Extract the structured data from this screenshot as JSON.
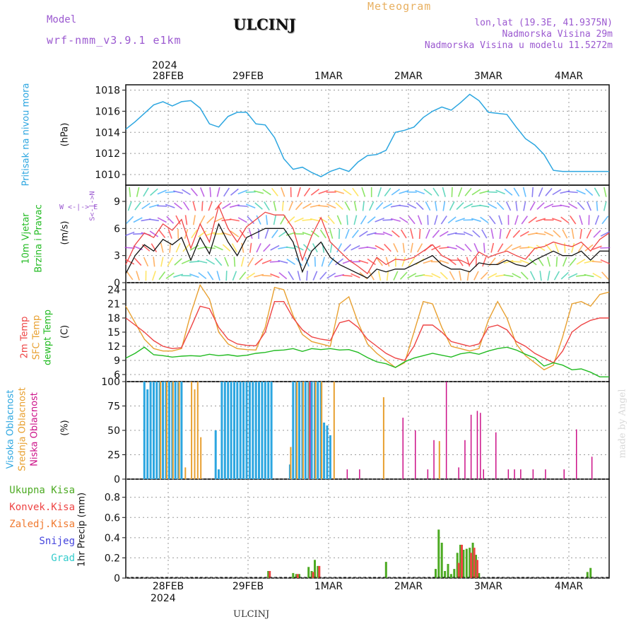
{
  "header": {
    "model_label": "Model",
    "model_name": "wrf-nmm_v3.9.1 e1km",
    "station": "ULCINJ",
    "meteogram_label": "Meteogram",
    "lonlat": "lon,lat (19.3E, 41.9375N)",
    "elevation": "Nadmorska Visina 29m",
    "model_elevation": "Nadmorska Visina u modelu 11.5272m",
    "footer_station": "ULCINJ",
    "watermark": "made by Angel"
  },
  "colors": {
    "pressure": "#2ca6e0",
    "wind_label": "#22bb22",
    "temp2m": "#ee4444",
    "sfc_temp": "#e8a030",
    "dewpoint": "#22bb22",
    "high_cloud": "#2ca6e0",
    "mid_cloud": "#e8a030",
    "low_cloud": "#cc1188",
    "total_precip": "#4caa22",
    "conv_precip": "#ee4444",
    "grid_precip": "#f07a30",
    "snow": "#4444dd",
    "graupel": "#33cccc",
    "header_purple": "#9b59d0",
    "meteogram_orange": "#e8b060"
  },
  "x_axis": {
    "year_top": "2024",
    "year_bottom": "2024",
    "date_labels": [
      "28FEB",
      "29FEB",
      "1MAR",
      "2MAR",
      "3MAR",
      "4MAR"
    ]
  },
  "panels": {
    "pressure": {
      "ylabel": "(hPa)",
      "side_label": "Pritisak na nivou mora"
    },
    "wind": {
      "ylabel": "(m/s)",
      "side_label_1": "10m Vjetar",
      "side_label_2": "Brzina i Pravac",
      "compass_n": "N",
      "compass_s": "S",
      "compass_w": "W",
      "compass_e": "E"
    },
    "temp": {
      "ylabel": "(C)",
      "side_label_1": "2m Temp",
      "side_label_2": "SFC Temp",
      "side_label_3": "dewpt Temp"
    },
    "cloud": {
      "ylabel": "(%)",
      "side_label_1": "Visoka Oblacnost",
      "side_label_2": "Srednja Oblacnost",
      "side_label_3": "Niska Oblacnost"
    },
    "precip": {
      "ylabel": "1hr Precip (mm)",
      "legend": [
        "Ukupna Kisa",
        "Konvek.Kisa",
        "Zaledj.Kisa",
        "Snijeg",
        "Grad"
      ]
    }
  },
  "chart_data": [
    {
      "type": "line",
      "name": "pressure",
      "x_unit": "hours since 28FEB 00",
      "ylim": [
        1009,
        1018.5
      ],
      "yticks": [
        1010,
        1012,
        1014,
        1016,
        1018
      ],
      "grid": true,
      "series": [
        {
          "name": "",
          "x": [
            -15,
            -12,
            -9,
            -6,
            -3,
            0,
            3,
            6,
            9,
            12,
            15,
            18,
            21,
            24,
            27,
            30,
            33,
            36,
            39,
            42,
            45,
            48,
            51,
            54,
            57,
            60,
            63,
            66,
            69,
            72,
            75,
            78,
            81,
            84,
            87,
            90,
            93,
            96,
            99,
            102,
            105,
            108,
            111,
            114,
            117,
            120,
            123,
            126,
            129,
            132,
            135,
            138,
            141
          ],
          "y": [
            1014.3,
            1015.0,
            1015.8,
            1016.6,
            1016.9,
            1016.5,
            1016.9,
            1017.0,
            1016.3,
            1014.8,
            1014.5,
            1015.5,
            1015.9,
            1015.9,
            1014.8,
            1014.7,
            1013.5,
            1011.5,
            1010.5,
            1010.7,
            1010.2,
            1009.8,
            1010.3,
            1010.6,
            1010.3,
            1011.2,
            1011.8,
            1011.9,
            1012.3,
            1014.0,
            1014.2,
            1014.5,
            1015.4,
            1016.0,
            1016.4,
            1016.1,
            1016.8,
            1017.6,
            1017.0,
            1015.9,
            1015.8,
            1015.7,
            1014.5,
            1013.4,
            1012.8,
            1011.9,
            1010.4,
            1010.3,
            1010.3,
            1010.3,
            1010.3,
            1010.3,
            1010.3
          ]
        }
      ]
    },
    {
      "type": "line",
      "name": "wind",
      "x_unit": "hours since 28FEB 00",
      "ylim": [
        0,
        10.8
      ],
      "yticks": [
        0,
        3,
        6,
        9
      ],
      "grid": true,
      "series": [
        {
          "name": "",
          "x": [
            -15,
            -12,
            -9,
            -6,
            -3,
            0,
            3,
            6,
            9,
            12,
            15,
            18,
            21,
            24,
            27,
            30,
            33,
            36,
            39,
            42,
            45,
            48,
            51,
            54,
            57,
            60,
            63,
            66,
            69,
            72,
            75,
            78,
            81,
            84,
            87,
            90,
            93,
            96,
            99,
            102,
            105,
            108,
            111,
            114,
            117,
            120,
            123,
            126,
            129,
            132,
            135,
            138,
            141
          ],
          "y": [
            2.0,
            4.2,
            5.5,
            5.0,
            6.5,
            5.8,
            7.0,
            3.8,
            6.5,
            4.5,
            8.5,
            6.0,
            4.5,
            6.2,
            7.0,
            7.8,
            7.5,
            7.5,
            6.0,
            2.5,
            5.2,
            7.2,
            4.5,
            3.5,
            2.5,
            1.8,
            1.0,
            2.8,
            2.0,
            2.6,
            2.5,
            2.8,
            3.5,
            4.2,
            3.0,
            2.5,
            2.5,
            2.0,
            3.4,
            2.8,
            3.2,
            3.5,
            3.0,
            2.6,
            3.8,
            4.0,
            4.5,
            4.2,
            4.0,
            4.5,
            3.5,
            4.8,
            5.5
          ]
        },
        {
          "name": "",
          "x": [
            -15,
            -12,
            -9,
            -6,
            -3,
            0,
            3,
            6,
            9,
            12,
            15,
            18,
            21,
            24,
            27,
            30,
            33,
            36,
            39,
            42,
            45,
            48,
            51,
            54,
            57,
            60,
            63,
            66,
            69,
            72,
            75,
            78,
            81,
            84,
            87,
            90,
            93,
            96,
            99,
            102,
            105,
            108,
            111,
            114,
            117,
            120,
            123,
            126,
            129,
            132,
            135,
            138,
            141
          ],
          "y": [
            1.0,
            3.0,
            4.2,
            3.5,
            4.8,
            4.2,
            5.0,
            2.5,
            5.0,
            3.2,
            6.5,
            4.5,
            3.0,
            5.0,
            5.5,
            6.0,
            6.0,
            6.0,
            4.5,
            1.2,
            3.5,
            4.5,
            2.8,
            2.0,
            1.5,
            1.0,
            0.5,
            1.5,
            1.2,
            1.5,
            1.5,
            2.0,
            2.5,
            3.0,
            2.0,
            1.5,
            1.5,
            1.2,
            2.2,
            2.0,
            2.0,
            2.5,
            2.0,
            1.8,
            2.5,
            3.0,
            3.5,
            3.0,
            3.0,
            3.5,
            2.5,
            3.5,
            3.5
          ]
        }
      ]
    },
    {
      "type": "line",
      "name": "temperature",
      "x_unit": "hours since 28FEB 00",
      "ylim": [
        4.5,
        25.5
      ],
      "yticks": [
        6,
        9,
        12,
        15,
        18,
        21,
        24
      ],
      "grid": true,
      "series": [
        {
          "name": "2m Temp",
          "x": [
            -15,
            -12,
            -9,
            -6,
            -3,
            0,
            3,
            6,
            9,
            12,
            15,
            18,
            21,
            24,
            27,
            30,
            33,
            36,
            39,
            42,
            45,
            48,
            51,
            54,
            57,
            60,
            63,
            66,
            69,
            72,
            75,
            78,
            81,
            84,
            87,
            90,
            93,
            96,
            99,
            102,
            105,
            108,
            111,
            114,
            117,
            120,
            123,
            126,
            129,
            132,
            135,
            138,
            141
          ],
          "y": [
            18,
            16.5,
            15,
            13.2,
            12.0,
            11.5,
            11.7,
            16,
            20.5,
            20,
            16,
            13.5,
            12.5,
            12.2,
            12.1,
            15,
            21.5,
            21.5,
            18.0,
            15.5,
            14.0,
            13.5,
            13.2,
            17.0,
            17.5,
            16,
            13.5,
            12.0,
            10.5,
            9.5,
            9.0,
            12,
            16.5,
            16.5,
            15,
            13,
            12.5,
            12.0,
            12.5,
            16.0,
            16.5,
            15.5,
            13,
            12.0,
            10.5,
            9.5,
            8.5,
            11,
            15,
            16.5,
            17.5,
            18,
            18
          ]
        },
        {
          "name": "SFC Temp",
          "x": [
            -15,
            -12,
            -9,
            -6,
            -3,
            0,
            3,
            6,
            9,
            12,
            15,
            18,
            21,
            24,
            27,
            30,
            33,
            36,
            39,
            42,
            45,
            48,
            51,
            54,
            57,
            60,
            63,
            66,
            69,
            72,
            75,
            78,
            81,
            84,
            87,
            90,
            93,
            96,
            99,
            102,
            105,
            108,
            111,
            114,
            117,
            120,
            123,
            126,
            129,
            132,
            135,
            138,
            141
          ],
          "y": [
            20.5,
            17,
            13.5,
            11.5,
            11.0,
            11.0,
            11.5,
            19,
            25,
            22,
            15,
            12.5,
            11.5,
            11.3,
            11.2,
            16,
            24.5,
            24,
            18.5,
            14.5,
            13.0,
            12.5,
            12.0,
            21,
            22.5,
            17,
            12.5,
            10.5,
            9.0,
            7.5,
            8.5,
            15,
            21.5,
            21,
            16,
            12,
            11.5,
            11.0,
            11.5,
            17.5,
            21.5,
            18,
            12.5,
            10.0,
            8.5,
            7.0,
            8.0,
            14,
            21,
            21.5,
            20.5,
            23,
            23.5
          ]
        },
        {
          "name": "dewpt Temp",
          "x": [
            -15,
            -12,
            -9,
            -6,
            -3,
            0,
            3,
            6,
            9,
            12,
            15,
            18,
            21,
            24,
            27,
            30,
            33,
            36,
            39,
            42,
            45,
            48,
            51,
            54,
            57,
            60,
            63,
            66,
            69,
            72,
            75,
            78,
            81,
            84,
            87,
            90,
            93,
            96,
            99,
            102,
            105,
            108,
            111,
            114,
            117,
            120,
            123,
            126,
            129,
            132,
            135,
            138,
            141
          ],
          "y": [
            9.5,
            10.5,
            11.8,
            10.2,
            10.0,
            9.7,
            9.9,
            10.0,
            9.9,
            10.3,
            10.0,
            10.2,
            9.9,
            10.1,
            10.5,
            10.7,
            11.1,
            11.2,
            11.5,
            10.9,
            11.5,
            11.3,
            11.5,
            11.2,
            11.3,
            10.7,
            9.6,
            8.7,
            8.3,
            7.5,
            8.7,
            9.5,
            10.0,
            10.5,
            10.1,
            9.7,
            10.4,
            10.7,
            10.3,
            11.0,
            11.5,
            11.8,
            11.2,
            10.3,
            9.5,
            7.8,
            8.5,
            8.0,
            7.0,
            7.2,
            6.5,
            5.5,
            5.5
          ]
        }
      ]
    },
    {
      "type": "bar",
      "name": "cloud cover",
      "x_unit": "hours since 28FEB 00",
      "ylim": [
        0,
        100
      ],
      "yticks": [
        0,
        25,
        50,
        75,
        100
      ],
      "grid": true,
      "series": [
        {
          "name": "Visoka Oblacnost",
          "x": [
            -9,
            -8,
            -7,
            -6,
            -5,
            -4,
            -3,
            -2,
            -1,
            0,
            1,
            2,
            3,
            14,
            15,
            16,
            17,
            18,
            19,
            20,
            21,
            22,
            23,
            24,
            25,
            26,
            27,
            28,
            29,
            30,
            31,
            32,
            38,
            39,
            40,
            41,
            42,
            43,
            44,
            45,
            46,
            47,
            48,
            49,
            50,
            51
          ],
          "y": [
            100,
            92,
            100,
            100,
            100,
            100,
            100,
            100,
            100,
            100,
            100,
            100,
            100,
            50,
            10,
            100,
            100,
            100,
            100,
            100,
            100,
            100,
            100,
            100,
            100,
            100,
            100,
            100,
            100,
            100,
            100,
            100,
            15,
            100,
            100,
            100,
            100,
            100,
            100,
            100,
            100,
            100,
            100,
            58,
            55,
            45
          ]
        },
        {
          "name": "Srednja Oblacnost",
          "x": [
            -4,
            -2,
            0,
            2,
            4,
            6,
            7,
            8,
            9,
            38,
            40,
            42,
            44,
            46,
            48,
            52,
            68,
            86
          ],
          "y": [
            100,
            100,
            100,
            100,
            12,
            100,
            92,
            100,
            43,
            33,
            100,
            100,
            100,
            100,
            100,
            100,
            84,
            39
          ]
        },
        {
          "name": "Niska Oblacnost",
          "x": [
            44,
            56,
            60,
            74,
            78,
            82,
            84,
            88,
            92,
            94,
            96,
            98,
            99,
            100,
            104,
            108,
            110,
            112,
            116,
            120,
            126,
            130,
            135
          ],
          "y": [
            100,
            10,
            10,
            63,
            50,
            10,
            40,
            100,
            12,
            40,
            66,
            70,
            68,
            10,
            48,
            10,
            10,
            10,
            10,
            10,
            10,
            51,
            23
          ]
        }
      ]
    },
    {
      "type": "bar",
      "name": "precipitation",
      "x_unit": "hours since 28FEB 00",
      "ylim": [
        0,
        0.98
      ],
      "yticks": [
        0,
        0.2,
        0.4,
        0.6,
        0.8
      ],
      "grid": true,
      "series": [
        {
          "name": "Ukupna Kisa",
          "x": [
            31,
            39,
            40,
            41,
            44,
            45,
            46,
            47,
            69,
            85,
            86,
            87,
            88,
            89,
            90,
            91,
            92,
            93,
            94,
            95,
            96,
            97,
            98,
            99,
            134,
            135
          ],
          "y": [
            0.07,
            0.05,
            0.04,
            0.04,
            0.11,
            0.07,
            0.18,
            0.12,
            0.16,
            0.09,
            0.48,
            0.35,
            0.07,
            0.14,
            0.04,
            0.09,
            0.25,
            0.33,
            0.28,
            0.29,
            0.3,
            0.35,
            0.23,
            0.05,
            0.06,
            0.1
          ]
        },
        {
          "name": "Konvek.Kisa",
          "x": [
            31,
            40,
            45,
            47,
            92,
            93,
            96,
            97,
            98
          ],
          "y": [
            0.07,
            0.04,
            0.06,
            0.12,
            0.15,
            0.33,
            0.25,
            0.3,
            0.18
          ]
        }
      ]
    }
  ]
}
